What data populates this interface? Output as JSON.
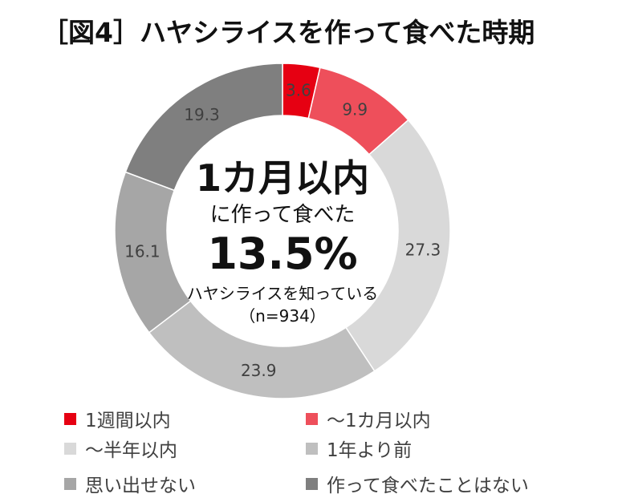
{
  "title": "［図4］ハヤシライスを作って食べた時期",
  "center": {
    "headline": "1カ月以内",
    "subline": "に作って食べた",
    "percent": "13.5%",
    "base": "ハヤシライスを知っている",
    "n": "（n=934）"
  },
  "legend": [
    {
      "label": "1週間以内",
      "color": "#E60012"
    },
    {
      "label": "～1カ月以内",
      "color": "#EE4F5B"
    },
    {
      "label": "～半年以内",
      "color": "#D9D9D9"
    },
    {
      "label": "1年より前",
      "color": "#BFBFBF"
    },
    {
      "label": "思い出せない",
      "color": "#A6A6A6"
    },
    {
      "label": "作って食べたことはない",
      "color": "#7F7F7F"
    }
  ],
  "chart_data": {
    "type": "pie",
    "variant": "donut",
    "title": "［図4］ハヤシライスを作って食べた時期",
    "categories": [
      "1週間以内",
      "～1カ月以内",
      "～半年以内",
      "1年より前",
      "思い出せない",
      "作って食べたことはない"
    ],
    "values": [
      3.6,
      9.9,
      27.3,
      23.9,
      16.1,
      19.3
    ],
    "colors": [
      "#E60012",
      "#EE4F5B",
      "#D9D9D9",
      "#BFBFBF",
      "#A6A6A6",
      "#7F7F7F"
    ],
    "unit": "%",
    "start_angle": "12 o'clock, clockwise",
    "center_annotation": "1カ月以内に作って食べた 13.5% ハヤシライスを知っている（n=934）",
    "legend_position": "bottom, 2 columns",
    "n": 934
  }
}
